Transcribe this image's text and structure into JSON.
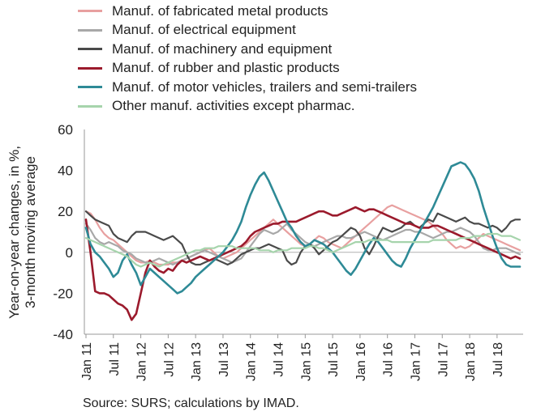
{
  "chart_data": {
    "type": "line",
    "title": "",
    "ylabel_lines": [
      "Year-on-year changes, in %,",
      "3-month moving average"
    ],
    "xlabel": "",
    "ylim": [
      -40,
      60
    ],
    "yticks": [
      -40,
      -20,
      0,
      20,
      40,
      60
    ],
    "grid": false,
    "legend_position": "top-left",
    "x_tick_labels": [
      "Jan 11",
      "Jul 11",
      "Jan 12",
      "Jul 12",
      "Jan 13",
      "Jul 13",
      "Jan 14",
      "Jul 14",
      "Jan 15",
      "Jul 15",
      "Jan 16",
      "Jul 16",
      "Jan 17",
      "Jul 17",
      "Jan 18",
      "Jul 18"
    ],
    "x_start": "Jan 11",
    "x_end": "Oct 18",
    "series": [
      {
        "name": "Manuf. of fabricated metal products",
        "color": "#e8a0a0",
        "width": 2.2,
        "values": [
          20,
          19,
          16,
          12,
          9,
          7,
          6,
          4,
          2,
          0,
          -2,
          -4,
          -5,
          -5,
          -4,
          -5,
          -6,
          -6,
          -6,
          -5,
          -5,
          -4,
          -3,
          -2,
          -1,
          0,
          1,
          2,
          0,
          -2,
          -3,
          -2,
          -1,
          0,
          2,
          4,
          6,
          8,
          10,
          12,
          14,
          16,
          14,
          12,
          10,
          8,
          6,
          4,
          3,
          4,
          6,
          8,
          7,
          5,
          4,
          3,
          2,
          4,
          6,
          8,
          10,
          12,
          14,
          16,
          18,
          20,
          22,
          23,
          22,
          21,
          20,
          19,
          18,
          17,
          16,
          15,
          13,
          11,
          9,
          6,
          4,
          2,
          3,
          2,
          3,
          5,
          7,
          9,
          8,
          7,
          6,
          5,
          4,
          3,
          2,
          1
        ]
      },
      {
        "name": "Manuf. of electrical equipment",
        "color": "#a8a8a8",
        "width": 2.2,
        "values": [
          14,
          11,
          7,
          5,
          4,
          5,
          4,
          3,
          1,
          0,
          -1,
          -3,
          -4,
          -5,
          -5,
          -4,
          -3,
          -4,
          -5,
          -6,
          -5,
          -4,
          -3,
          -2,
          -1,
          0,
          1,
          0,
          -1,
          -2,
          -3,
          -4,
          -5,
          -4,
          -3,
          0,
          3,
          6,
          9,
          11,
          10,
          9,
          10,
          12,
          14,
          11,
          9,
          7,
          5,
          4,
          3,
          4,
          5,
          6,
          7,
          8,
          8,
          7,
          7,
          8,
          9,
          10,
          9,
          8,
          7,
          6,
          7,
          8,
          9,
          10,
          11,
          11,
          10,
          10,
          9,
          8,
          7,
          8,
          9,
          10,
          10,
          11,
          12,
          11,
          10,
          8,
          5,
          2,
          1,
          1,
          2,
          2,
          2,
          1,
          0,
          -1
        ]
      },
      {
        "name": "Manuf. of machinery and equipment",
        "color": "#4a4a4a",
        "width": 2.2,
        "values": [
          20,
          18,
          16,
          15,
          14,
          13,
          9,
          7,
          6,
          5,
          8,
          10,
          10,
          10,
          9,
          8,
          7,
          6,
          7,
          8,
          6,
          4,
          -1,
          -5,
          -6,
          -6,
          -5,
          -4,
          -3,
          -4,
          -5,
          -6,
          -5,
          -3,
          -1,
          0,
          1,
          2,
          2,
          3,
          4,
          3,
          2,
          1,
          -4,
          -6,
          -5,
          0,
          3,
          4,
          2,
          -1,
          1,
          3,
          5,
          6,
          8,
          10,
          12,
          11,
          8,
          2,
          -1,
          3,
          8,
          12,
          11,
          10,
          11,
          12,
          14,
          15,
          13,
          12,
          14,
          16,
          15,
          19,
          18,
          17,
          16,
          15,
          16,
          17,
          15,
          14,
          14,
          13,
          12,
          13,
          12,
          10,
          12,
          15,
          16,
          16
        ]
      },
      {
        "name": "Manuf. of rubber and plastic products",
        "color": "#9b1a2c",
        "width": 2.6,
        "values": [
          16,
          0,
          -19,
          -20,
          -20,
          -21,
          -23,
          -25,
          -26,
          -28,
          -33,
          -30,
          -20,
          -10,
          -4,
          -7,
          -9,
          -10,
          -8,
          -9,
          -6,
          -4,
          -5,
          -4,
          -3,
          -2,
          -3,
          -4,
          -3,
          -2,
          -1,
          0,
          1,
          2,
          3,
          5,
          8,
          10,
          11,
          12,
          13,
          14,
          14,
          15,
          15,
          15,
          15,
          16,
          17,
          18,
          19,
          20,
          20,
          19,
          18,
          18,
          19,
          20,
          21,
          22,
          21,
          20,
          21,
          21,
          20,
          19,
          18,
          17,
          16,
          15,
          14,
          14,
          13,
          12,
          12,
          12,
          13,
          13,
          12,
          11,
          10,
          9,
          8,
          7,
          6,
          5,
          4,
          3,
          2,
          1,
          0,
          -1,
          -2,
          -3,
          -2,
          -3
        ]
      },
      {
        "name": "Manuf. of motor vehicles, trailers and semi-trailers",
        "color": "#2e8a96",
        "width": 2.6,
        "values": [
          12,
          4,
          0,
          -2,
          -5,
          -8,
          -12,
          -10,
          -4,
          -1,
          -6,
          -10,
          -16,
          -12,
          -8,
          -10,
          -12,
          -14,
          -16,
          -18,
          -20,
          -19,
          -17,
          -15,
          -12,
          -10,
          -8,
          -6,
          -4,
          -2,
          0,
          3,
          6,
          10,
          15,
          22,
          28,
          33,
          37,
          39,
          35,
          30,
          25,
          20,
          15,
          12,
          8,
          5,
          3,
          4,
          6,
          5,
          4,
          2,
          0,
          -3,
          -6,
          -9,
          -11,
          -8,
          -4,
          0,
          4,
          7,
          5,
          2,
          -1,
          -4,
          -6,
          -7,
          -3,
          2,
          6,
          10,
          14,
          18,
          22,
          27,
          32,
          37,
          42,
          43,
          44,
          43,
          40,
          36,
          30,
          22,
          15,
          8,
          2,
          -3,
          -6,
          -7,
          -7,
          -7
        ]
      },
      {
        "name": "Other manuf. activities except pharmac.",
        "color": "#a6d4ac",
        "width": 2.2,
        "values": [
          7,
          6,
          5,
          4,
          3,
          2,
          1,
          0,
          -1,
          -2,
          -4,
          -6,
          -7,
          -6,
          -5,
          -6,
          -7,
          -6,
          -5,
          -4,
          -3,
          -2,
          -1,
          0,
          1,
          1,
          2,
          2,
          2,
          3,
          3,
          3,
          3,
          2,
          2,
          2,
          2,
          2,
          1,
          1,
          1,
          0,
          1,
          1,
          1,
          2,
          2,
          2,
          2,
          3,
          3,
          2,
          2,
          1,
          0,
          1,
          2,
          3,
          4,
          5,
          5,
          5,
          6,
          6,
          6,
          6,
          6,
          5,
          5,
          5,
          5,
          5,
          5,
          5,
          5,
          5,
          6,
          6,
          6,
          6,
          6,
          6,
          7,
          7,
          7,
          8,
          8,
          8,
          9,
          9,
          9,
          8,
          8,
          8,
          7,
          6
        ]
      }
    ]
  },
  "source": "Source: SURS; calculations by IMAD."
}
